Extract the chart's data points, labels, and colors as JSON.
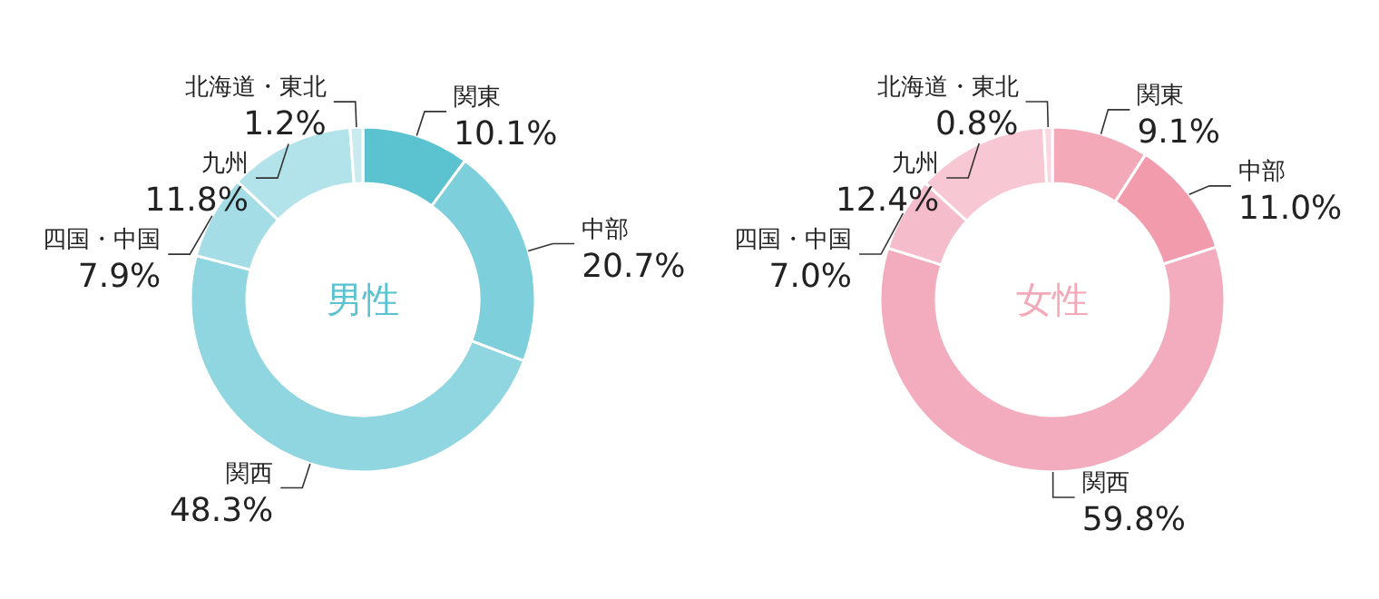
{
  "chart_data": [
    {
      "type": "donut",
      "title": "男性",
      "categories": [
        "関東",
        "中部",
        "関西",
        "四国・中国",
        "九州",
        "北海道・東北"
      ],
      "values": [
        10.1,
        20.7,
        48.3,
        7.9,
        11.8,
        1.2
      ],
      "value_labels": [
        "10.1%",
        "20.7%",
        "48.3%",
        "7.9%",
        "11.8%",
        "1.2%"
      ],
      "colors": [
        "#5bc3d0",
        "#7ccfdb",
        "#8fd6e1",
        "#a4dde6",
        "#b2e3ea",
        "#c9ebf0"
      ]
    },
    {
      "type": "donut",
      "title": "女性",
      "categories": [
        "関東",
        "中部",
        "関西",
        "四国・中国",
        "九州",
        "北海道・東北"
      ],
      "values": [
        9.1,
        11.0,
        59.8,
        7.0,
        12.4,
        0.8
      ],
      "value_labels": [
        "9.1%",
        "11.0%",
        "59.8%",
        "7.0%",
        "12.4%",
        "0.8%"
      ],
      "colors": [
        "#f4a9b8",
        "#f29bad",
        "#f3acbd",
        "#f5bdcb",
        "#f7c7d3",
        "#f9d7e0"
      ]
    }
  ]
}
